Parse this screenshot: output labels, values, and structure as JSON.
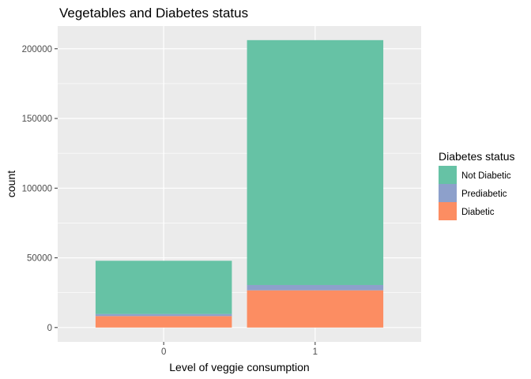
{
  "chart_data": {
    "type": "bar",
    "stacked": true,
    "title": "Vegetables and Diabetes status",
    "xlabel": "Level of veggie consumption",
    "ylabel": "count",
    "categories": [
      "0",
      "1"
    ],
    "ylim": [
      -10300,
      216300
    ],
    "yticks": [
      0,
      50000,
      100000,
      150000,
      200000
    ],
    "ytick_labels": [
      "0",
      "50000",
      "100000",
      "150000",
      "200000"
    ],
    "grid": true,
    "legend": {
      "title": "Diabetes status",
      "placement": "right"
    },
    "series": [
      {
        "name": "Diabetic",
        "color": "#fc8d62",
        "values": [
          8200,
          26700
        ]
      },
      {
        "name": "Prediabetic",
        "color": "#8da0cb",
        "values": [
          1500,
          3800
        ]
      },
      {
        "name": "Not Diabetic",
        "color": "#66c2a5",
        "values": [
          38200,
          175700
        ]
      }
    ],
    "legend_order": [
      "Not Diabetic",
      "Prediabetic",
      "Diabetic"
    ],
    "panel_background": "#ebebeb",
    "grid_color": "#ffffff"
  }
}
